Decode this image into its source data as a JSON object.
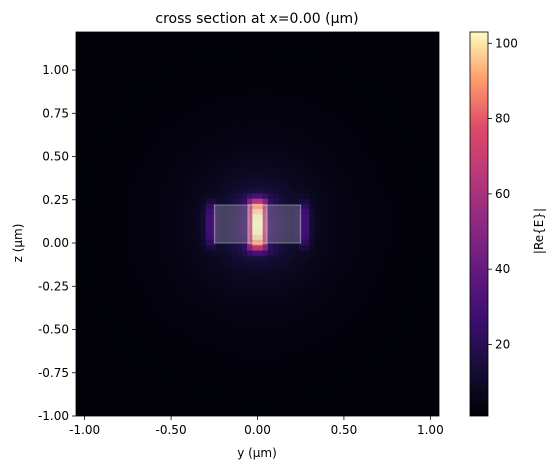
{
  "chart_data": {
    "type": "heatmap",
    "title": "cross section at x=0.00 (µm)",
    "xlabel": "y (µm)",
    "ylabel": "z (µm)",
    "colorbar_label": "|Re{E}|",
    "colormap": "magma",
    "xlim": [
      -1.05,
      1.05
    ],
    "ylim": [
      -1.0,
      1.22
    ],
    "x_ticks": [
      -1.0,
      -0.5,
      0.0,
      0.5,
      1.0
    ],
    "x_tick_labels": [
      "-1.00",
      "-0.50",
      "0.00",
      "0.50",
      "1.00"
    ],
    "y_ticks": [
      -1.0,
      -0.75,
      -0.5,
      -0.25,
      0.0,
      0.25,
      0.5,
      0.75,
      1.0
    ],
    "y_tick_labels": [
      "-1.00",
      "-0.75",
      "-0.50",
      "-0.25",
      "0.00",
      "0.25",
      "0.50",
      "0.75",
      "1.00"
    ],
    "colorbar_range": [
      1,
      103
    ],
    "colorbar_ticks": [
      20,
      40,
      60,
      80,
      100
    ],
    "colorbar_tick_labels": [
      "20",
      "40",
      "60",
      "80",
      "100"
    ],
    "field_peak": 103,
    "field_center": [
      0.0,
      0.11
    ],
    "structures": [
      {
        "name": "waveguide-core",
        "y_range": [
          -0.25,
          0.25
        ],
        "z_range": [
          0.0,
          0.22
        ]
      },
      {
        "name": "slot-gap",
        "y_range": [
          -0.05,
          0.05
        ],
        "z_range": [
          0.0,
          0.22
        ]
      }
    ]
  }
}
